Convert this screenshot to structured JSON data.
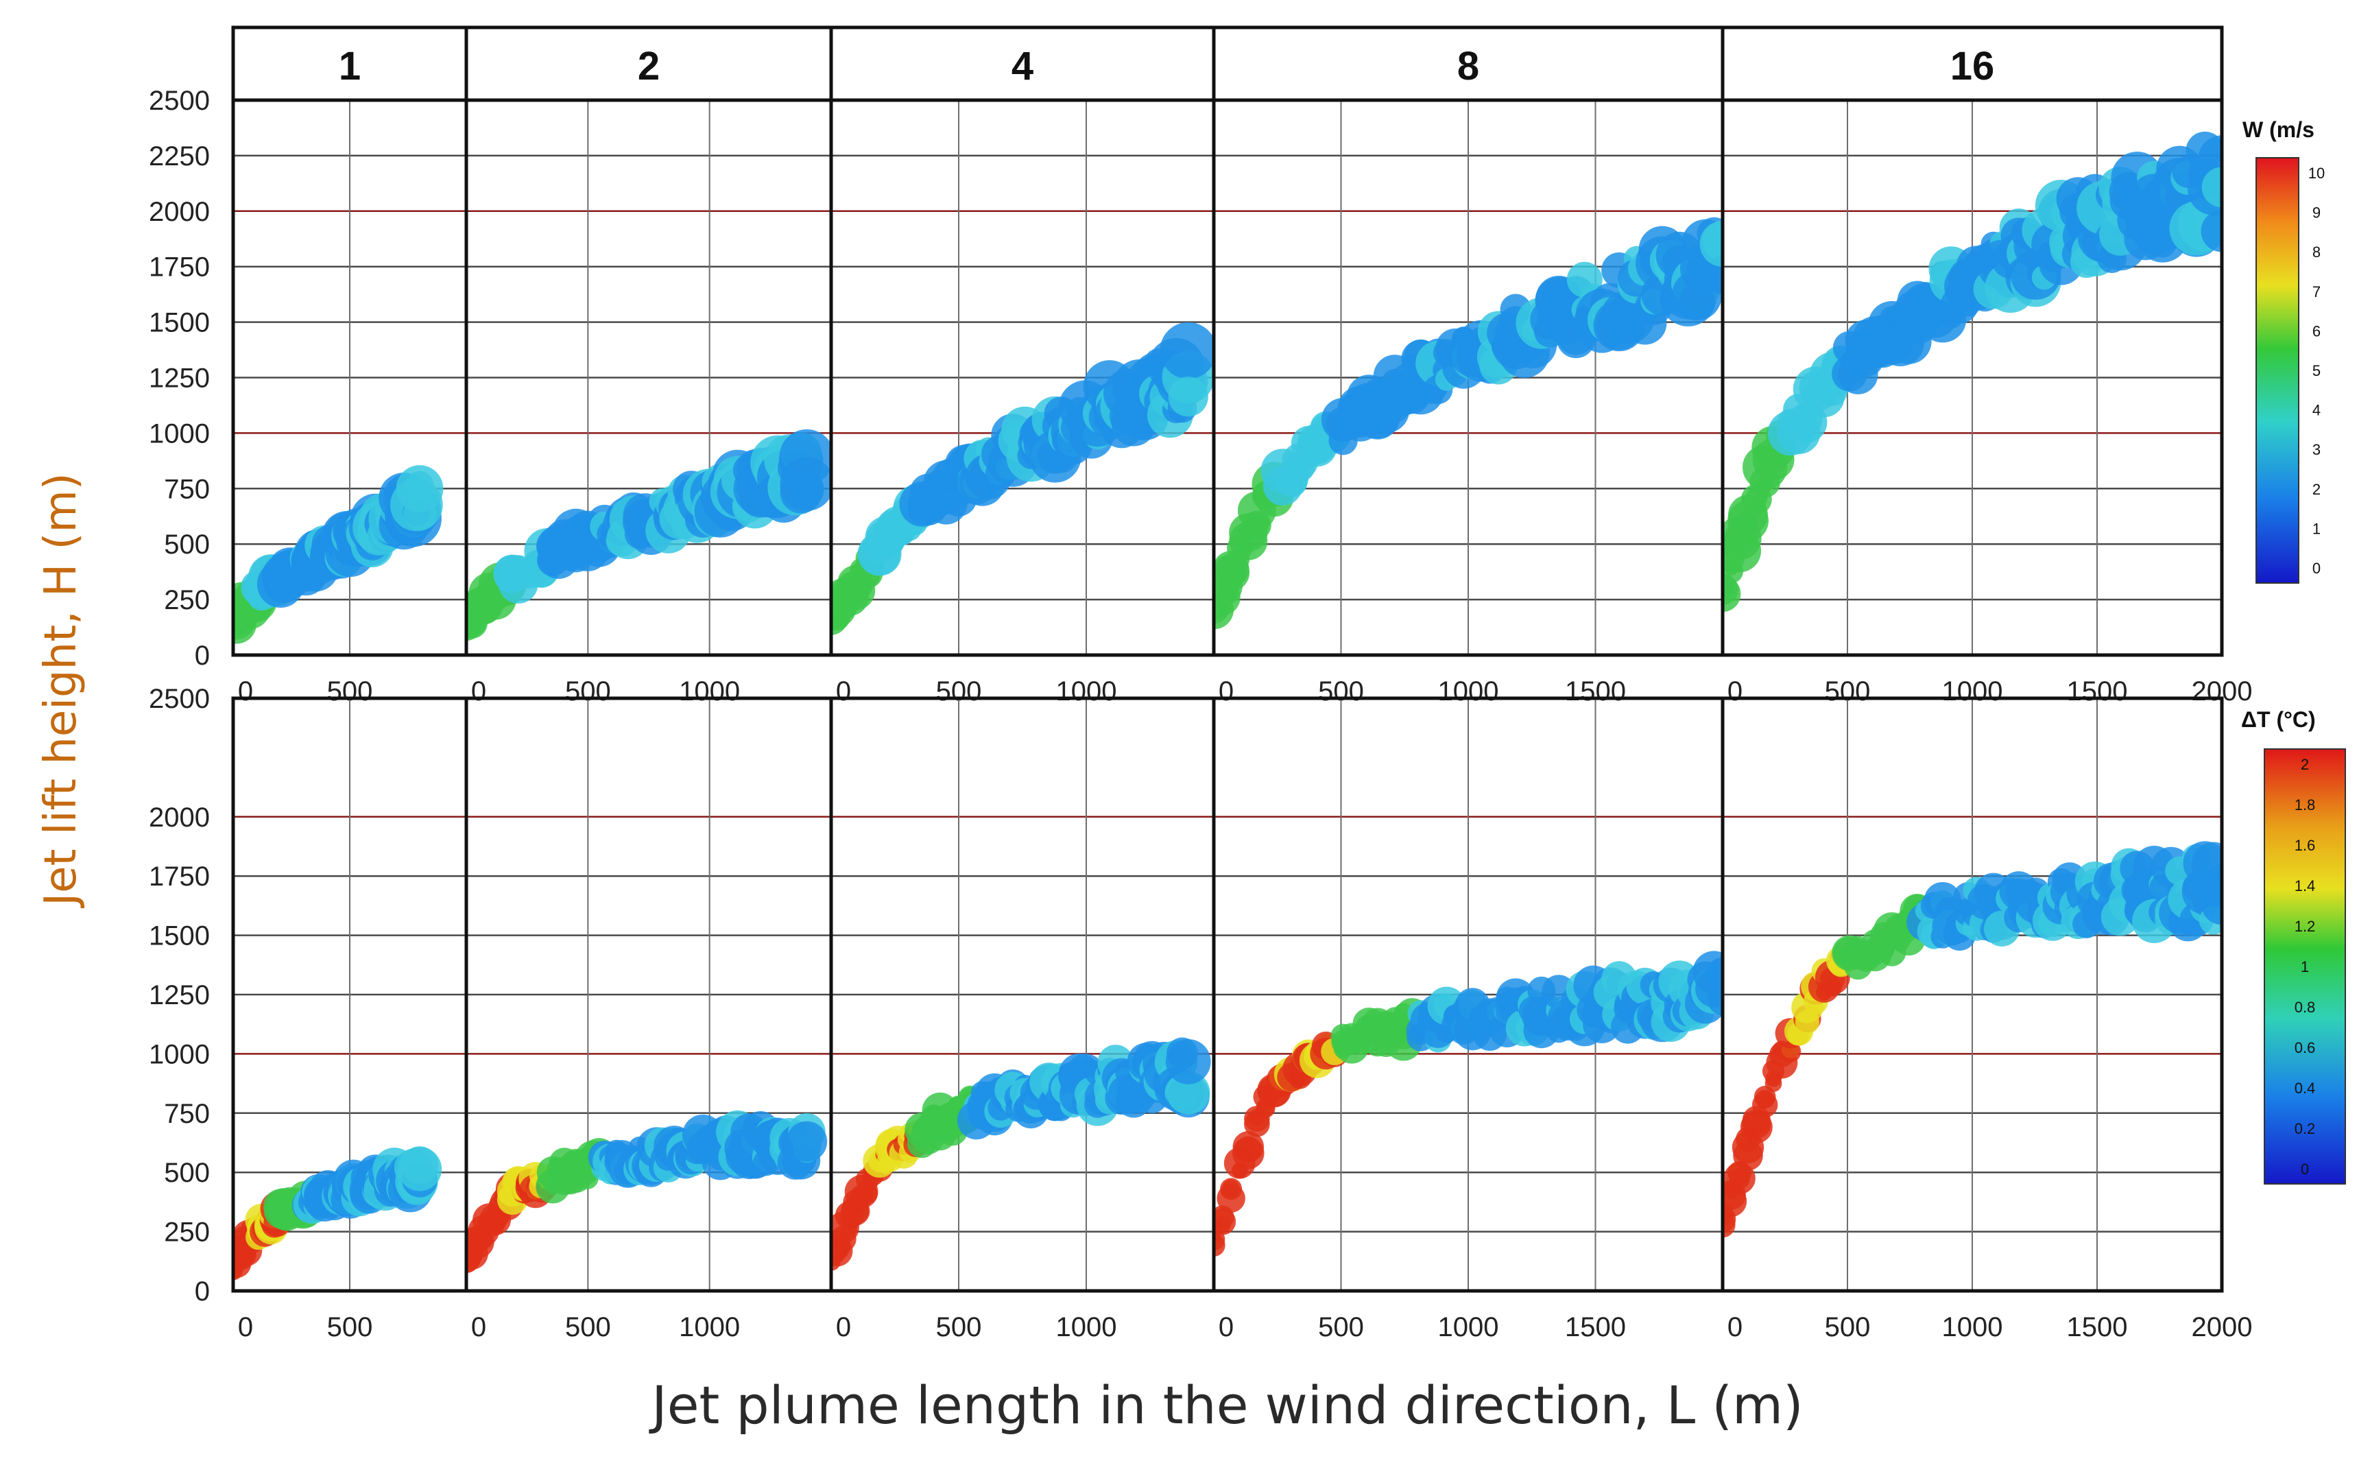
{
  "figure": {
    "y_axis_label": "Jet lift height, H (m)",
    "x_axis_label": "Jet plume length in the wind direction, L (m)",
    "panel_headers": [
      "1",
      "2",
      "4",
      "8",
      "16"
    ],
    "y_ticks": [
      "0",
      "250",
      "500",
      "750",
      "1000",
      "1250",
      "1500",
      "1750",
      "2000",
      "2250",
      "2500"
    ],
    "y_ticks_bottom": [
      "0",
      "250",
      "500",
      "750",
      "1000",
      "1250",
      "1500",
      "1750",
      "2000",
      "2500"
    ],
    "x_ticks": [
      [
        "0",
        "500"
      ],
      [
        "0",
        "500",
        "1000"
      ],
      [
        "0",
        "500",
        "1000"
      ],
      [
        "0",
        "500",
        "1000",
        "1500"
      ],
      [
        "0",
        "500",
        "1000",
        "1500",
        "2000"
      ]
    ],
    "colorbar_top": {
      "label": "W (m/s",
      "ticks": [
        "10",
        "9",
        "8",
        "7",
        "6",
        "5",
        "4",
        "3",
        "2",
        "1",
        "0"
      ]
    },
    "colorbar_bottom": {
      "label": "ΔT (°C)",
      "ticks": [
        "2",
        "1.8",
        "1.6",
        "1.4",
        "1.2",
        "1",
        "0.8",
        "0.6",
        "0.4",
        "0.2",
        "0"
      ]
    },
    "colors": {
      "plume_blue": "#1e90e8",
      "plume_cyan": "#38c8e0",
      "plume_green": "#3cc84a",
      "plume_yellow": "#e8e020",
      "plume_red": "#e03018",
      "ylabel_color": "#c46a10"
    }
  },
  "chart_data": [
    {
      "type": "heatmap",
      "row": "top",
      "variable": "W (m/s",
      "panels": [
        "1",
        "2",
        "4",
        "8",
        "16"
      ],
      "ylabel": "Jet lift height, H (m)",
      "xlabel": "Jet plume length in the wind direction, L (m)",
      "ylim": [
        0,
        2500
      ],
      "xlims": [
        [
          0,
          1000
        ],
        [
          0,
          1500
        ],
        [
          0,
          1500
        ],
        [
          0,
          2000
        ],
        [
          0,
          2000
        ]
      ],
      "colorbar": {
        "min": 0,
        "max": 10
      },
      "plume_centerline": [
        {
          "panel": "1",
          "L": [
            0,
            100,
            200,
            400,
            600,
            800
          ],
          "H": [
            150,
            280,
            350,
            450,
            550,
            700
          ]
        },
        {
          "panel": "2",
          "L": [
            0,
            200,
            400,
            600,
            800,
            1000,
            1400
          ],
          "H": [
            150,
            350,
            480,
            560,
            620,
            700,
            820
          ]
        },
        {
          "panel": "4",
          "L": [
            0,
            200,
            400,
            600,
            800,
            1000,
            1400
          ],
          "H": [
            150,
            500,
            700,
            850,
            950,
            1050,
            1250
          ]
        },
        {
          "panel": "8",
          "L": [
            0,
            200,
            400,
            600,
            800,
            1000,
            1400,
            2000
          ],
          "H": [
            200,
            700,
            950,
            1100,
            1250,
            1350,
            1550,
            1750
          ]
        },
        {
          "panel": "16",
          "L": [
            0,
            200,
            400,
            600,
            800,
            1000,
            1400,
            2000
          ],
          "H": [
            300,
            900,
            1200,
            1400,
            1550,
            1700,
            1900,
            2100
          ]
        }
      ]
    },
    {
      "type": "heatmap",
      "row": "bottom",
      "variable": "ΔT (°C)",
      "panels": [
        "1",
        "2",
        "4",
        "8",
        "16"
      ],
      "ylabel": "Jet lift height, H (m)",
      "xlabel": "Jet plume length in the wind direction, L (m)",
      "ylim": [
        0,
        2500
      ],
      "xlims": [
        [
          0,
          1000
        ],
        [
          0,
          1500
        ],
        [
          0,
          1500
        ],
        [
          0,
          2000
        ],
        [
          0,
          2000
        ]
      ],
      "colorbar": {
        "min": 0,
        "max": 2
      },
      "plume_centerline": [
        {
          "panel": "1",
          "L": [
            0,
            100,
            200,
            400,
            600,
            800
          ],
          "H": [
            100,
            250,
            330,
            400,
            450,
            480
          ]
        },
        {
          "panel": "2",
          "L": [
            0,
            200,
            400,
            600,
            800,
            1000,
            1400
          ],
          "H": [
            150,
            420,
            500,
            540,
            570,
            600,
            620
          ]
        },
        {
          "panel": "4",
          "L": [
            0,
            200,
            400,
            600,
            800,
            1000,
            1400
          ],
          "H": [
            150,
            550,
            700,
            780,
            820,
            860,
            920
          ]
        },
        {
          "panel": "8",
          "L": [
            0,
            200,
            400,
            600,
            800,
            1000,
            1400,
            2000
          ],
          "H": [
            200,
            800,
            1000,
            1080,
            1120,
            1150,
            1200,
            1250
          ]
        },
        {
          "panel": "16",
          "L": [
            0,
            200,
            400,
            600,
            800,
            1000,
            1400,
            2000
          ],
          "H": [
            300,
            900,
            1300,
            1450,
            1550,
            1600,
            1650,
            1700
          ]
        }
      ]
    }
  ]
}
